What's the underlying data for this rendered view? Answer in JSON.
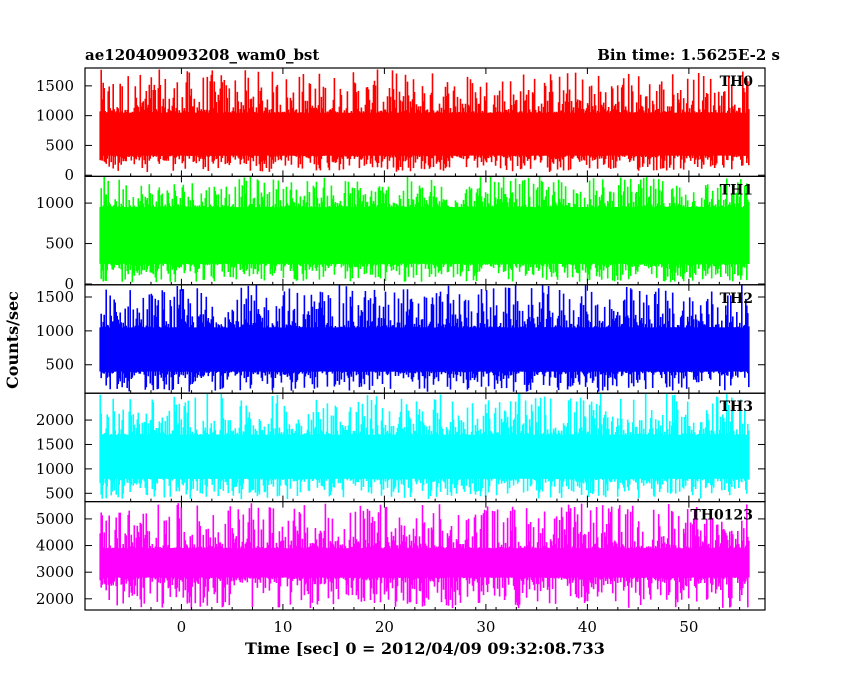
{
  "header": {
    "left_title": "ae120409093208_wam0_bst",
    "right_title": "Bin time: 1.5625E-2 s"
  },
  "chart_data": {
    "type": "line",
    "xlabel": "Time [sec] 0 = 2012/04/09 09:32:08.733",
    "ylabel": "Counts/sec",
    "xlim": [
      -9.5,
      57.5
    ],
    "x_ticks": [
      0,
      10,
      20,
      30,
      40,
      50
    ],
    "x_range": [
      -8,
      56
    ],
    "bin_time": 0.015625,
    "grid": false,
    "panels": [
      {
        "name": "TH0",
        "color": "#ff0000",
        "ylim": [
          -20,
          1800
        ],
        "y_ticks": [
          0,
          500,
          1000,
          1500
        ],
        "lower_env": [
          330,
          50
        ],
        "upper_env": [
          1050,
          1780
        ],
        "mean": 700
      },
      {
        "name": "TH1",
        "color": "#00ff00",
        "ylim": [
          -10,
          1330
        ],
        "y_ticks": [
          0,
          500,
          1000
        ],
        "lower_env": [
          250,
          20
        ],
        "upper_env": [
          950,
          1330
        ],
        "mean": 600
      },
      {
        "name": "TH2",
        "color": "#0000ff",
        "ylim": [
          80,
          1680
        ],
        "y_ticks": [
          500,
          1000,
          1500
        ],
        "lower_env": [
          400,
          100
        ],
        "upper_env": [
          1050,
          1680
        ],
        "mean": 750
      },
      {
        "name": "TH3",
        "color": "#00ffff",
        "ylim": [
          330,
          2550
        ],
        "y_ticks": [
          500,
          1000,
          1500,
          2000
        ],
        "lower_env": [
          800,
          380
        ],
        "upper_env": [
          1700,
          2550
        ],
        "mean": 1300
      },
      {
        "name": "TH0123",
        "color": "#ff00ff",
        "ylim": [
          1580,
          5650
        ],
        "y_ticks": [
          2000,
          3000,
          4000,
          5000
        ],
        "lower_env": [
          2800,
          1620
        ],
        "upper_env": [
          3900,
          5600
        ],
        "mean": 3300
      }
    ]
  }
}
